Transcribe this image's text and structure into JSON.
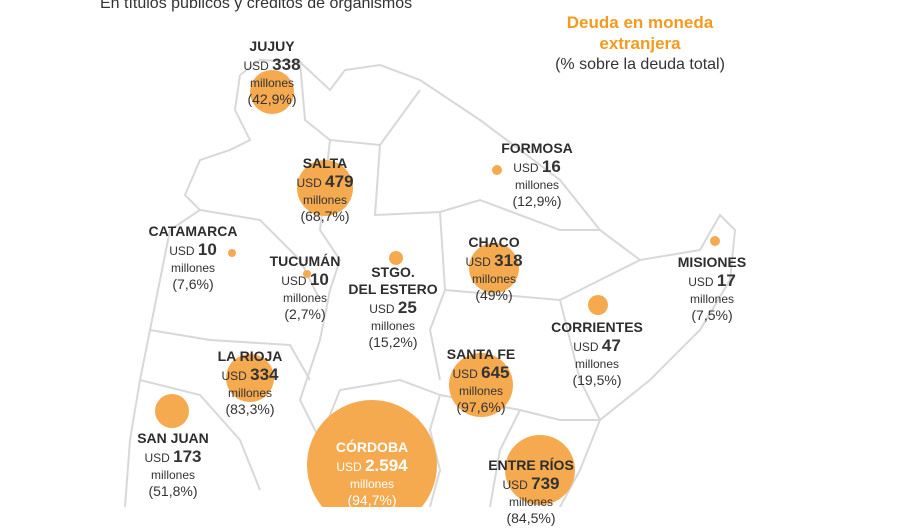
{
  "subtitle": "En títulos públicos y créditos de organismos",
  "legend": {
    "title_line1": "Deuda en moneda",
    "title_line2": "extranjera",
    "subtitle": "(% sobre la deuda total)"
  },
  "colors": {
    "bubble": "#f5aa50",
    "legend_title": "#f39a1f",
    "borders": "#d8d8d8"
  },
  "currency": "USD",
  "unit": "millones",
  "provinces": [
    {
      "name": "JUJUY",
      "value": "338",
      "pct": "(42,9%)"
    },
    {
      "name": "SALTA",
      "value": "479",
      "pct": "(68,7%)"
    },
    {
      "name": "FORMOSA",
      "value": "16",
      "pct": "(12,9%)"
    },
    {
      "name": "CATAMARCA",
      "value": "10",
      "pct": "(7,6%)"
    },
    {
      "name": "TUCUMÁN",
      "value": "10",
      "pct": "(2,7%)"
    },
    {
      "name": "STGO. DEL ESTERO",
      "value": "25",
      "pct": "(15,2%)"
    },
    {
      "name": "CHACO",
      "value": "318",
      "pct": "(49%)"
    },
    {
      "name": "MISIONES",
      "value": "17",
      "pct": "(7,5%)"
    },
    {
      "name": "CORRIENTES",
      "value": "47",
      "pct": "(19,5%)"
    },
    {
      "name": "LA RIOJA",
      "value": "334",
      "pct": "(83,3%)"
    },
    {
      "name": "SANTA FE",
      "value": "645",
      "pct": "(97,6%)"
    },
    {
      "name": "SAN JUAN",
      "value": "173",
      "pct": "(51,8%)"
    },
    {
      "name": "CÓRDOBA",
      "value": "2.594",
      "pct": "(94,7%)"
    },
    {
      "name": "ENTRE RÍOS",
      "value": "739",
      "pct": "(84,5%)"
    }
  ]
}
